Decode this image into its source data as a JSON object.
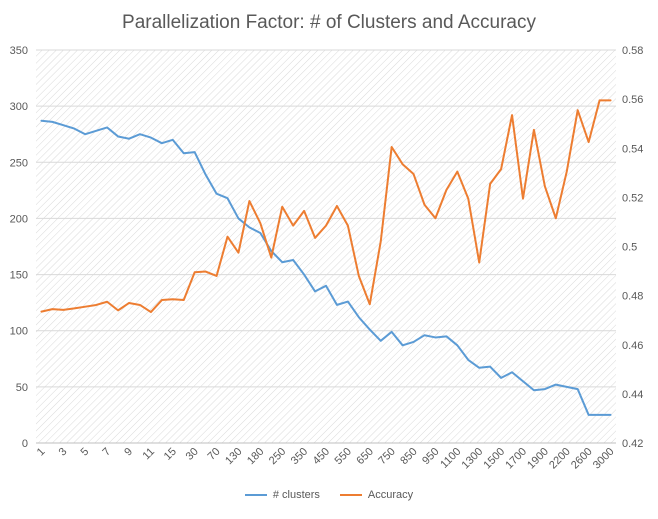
{
  "chart_data": {
    "type": "line",
    "title": "Parallelization Factor: # of Clusters and Accuracy",
    "x": [
      "1",
      "2",
      "3",
      "4",
      "5",
      "6",
      "7",
      "8",
      "9",
      "10",
      "11",
      "12",
      "15",
      "20",
      "30",
      "50",
      "70",
      "100",
      "130",
      "150",
      "180",
      "200",
      "250",
      "300",
      "350",
      "400",
      "450",
      "500",
      "550",
      "600",
      "650",
      "700",
      "750",
      "800",
      "850",
      "900",
      "950",
      "1000",
      "1100",
      "1200",
      "1300",
      "1400",
      "1500",
      "1600",
      "1700",
      "1800",
      "1900",
      "2000",
      "2200",
      "2400",
      "2600",
      "2800",
      "3000"
    ],
    "x_tick_labels_shown": [
      "1",
      "3",
      "5",
      "7",
      "9",
      "11",
      "15",
      "30",
      "70",
      "130",
      "180",
      "250",
      "350",
      "450",
      "550",
      "650",
      "750",
      "850",
      "950",
      "1100",
      "1300",
      "1500",
      "1700",
      "1900",
      "2200",
      "2600",
      "3000"
    ],
    "y_left": {
      "min": 0,
      "max": 350,
      "step": 50,
      "ticks": [
        "0",
        "50",
        "100",
        "150",
        "200",
        "250",
        "300",
        "350"
      ]
    },
    "y_right": {
      "min": 0.42,
      "max": 0.58,
      "step": 0.02,
      "ticks": [
        "0.42",
        "0.44",
        "0.46",
        "0.48",
        "0.5",
        "0.52",
        "0.54",
        "0.56",
        "0.58"
      ]
    },
    "series": [
      {
        "name": "# clusters",
        "axis": "left",
        "color": "#5B9BD5",
        "values": [
          287,
          286,
          283,
          280,
          275,
          278,
          281,
          273,
          271,
          275,
          272,
          267,
          270,
          258,
          259,
          239,
          222,
          218,
          200,
          192,
          187,
          171,
          161,
          163,
          150,
          135,
          140,
          123,
          126,
          112,
          101,
          91,
          99,
          87,
          90,
          96,
          94,
          95,
          87,
          74,
          67,
          68,
          58,
          63,
          55,
          47,
          48,
          52,
          50,
          48,
          25,
          25,
          25
        ]
      },
      {
        "name": "Accuracy",
        "axis": "right",
        "color": "#ED7D31",
        "values": [
          0.4735,
          0.4745,
          0.4742,
          0.4748,
          0.4755,
          0.4762,
          0.4775,
          0.474,
          0.477,
          0.4762,
          0.4733,
          0.4782,
          0.4785,
          0.4782,
          0.4895,
          0.4898,
          0.488,
          0.504,
          0.4975,
          0.5185,
          0.5095,
          0.4955,
          0.5162,
          0.5085,
          0.5145,
          0.5035,
          0.5085,
          0.5165,
          0.5085,
          0.488,
          0.4765,
          0.502,
          0.5405,
          0.5335,
          0.5295,
          0.517,
          0.5115,
          0.523,
          0.5305,
          0.5195,
          0.4935,
          0.5255,
          0.5315,
          0.5535,
          0.5195,
          0.5475,
          0.5245,
          0.5115,
          0.5305,
          0.5555,
          0.5425,
          0.5595,
          0.5595
        ]
      }
    ],
    "grid": true,
    "background_pattern": "diagonal-hatch",
    "legend_position": "bottom"
  }
}
